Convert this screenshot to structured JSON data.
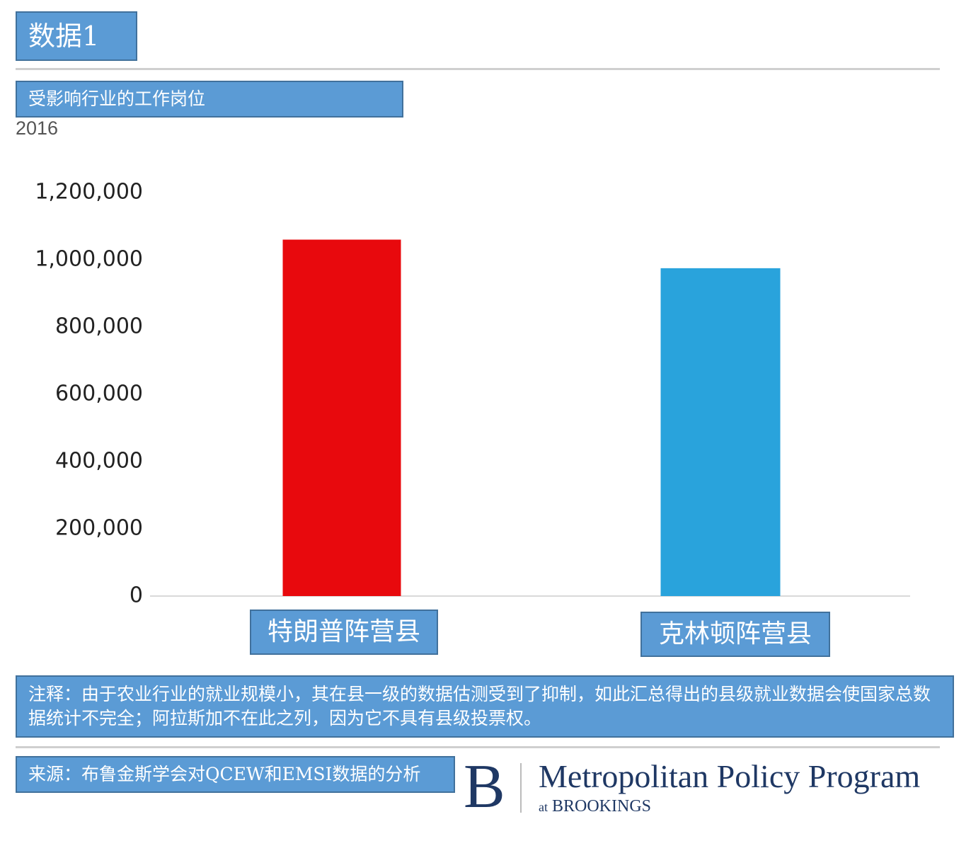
{
  "figure_label": "数据1",
  "chart_title": "受影响行业的工作岗位",
  "subtitle": "2016",
  "note": "注释：由于农业行业的就业规模小，其在县一级的数据估测受到了抑制，如此汇总得出的县级就业数据会使国家总数据统计不完全；阿拉斯加不在此之列，因为它不具有县级投票权。",
  "source": "来源：布鲁金斯学会对QCEW和EMSI数据的分析",
  "logo": {
    "letter": "B",
    "name": "Metropolitan Policy Program",
    "sub_prefix": "at",
    "sub_name": "BROOKINGS"
  },
  "colors": {
    "label_fill": "#5b9bd5",
    "trump": "#e8090d",
    "clinton": "#29a3dc",
    "logo": "#1f3864"
  },
  "chart_data": {
    "type": "bar",
    "categories": [
      "特朗普阵营县",
      "克林顿阵营县"
    ],
    "values": [
      1060000,
      975000
    ],
    "ylim": [
      0,
      1200000
    ],
    "yticks": [
      0,
      200000,
      400000,
      600000,
      800000,
      1000000,
      1200000
    ],
    "ytick_labels": [
      "0",
      "200,000",
      "400,000",
      "600,000",
      "800,000",
      "1,000,000",
      "1,200,000"
    ],
    "title": "受影响行业的工作岗位",
    "subtitle": "2016",
    "xlabel": "",
    "ylabel": "",
    "grid": false,
    "legend": "none"
  }
}
